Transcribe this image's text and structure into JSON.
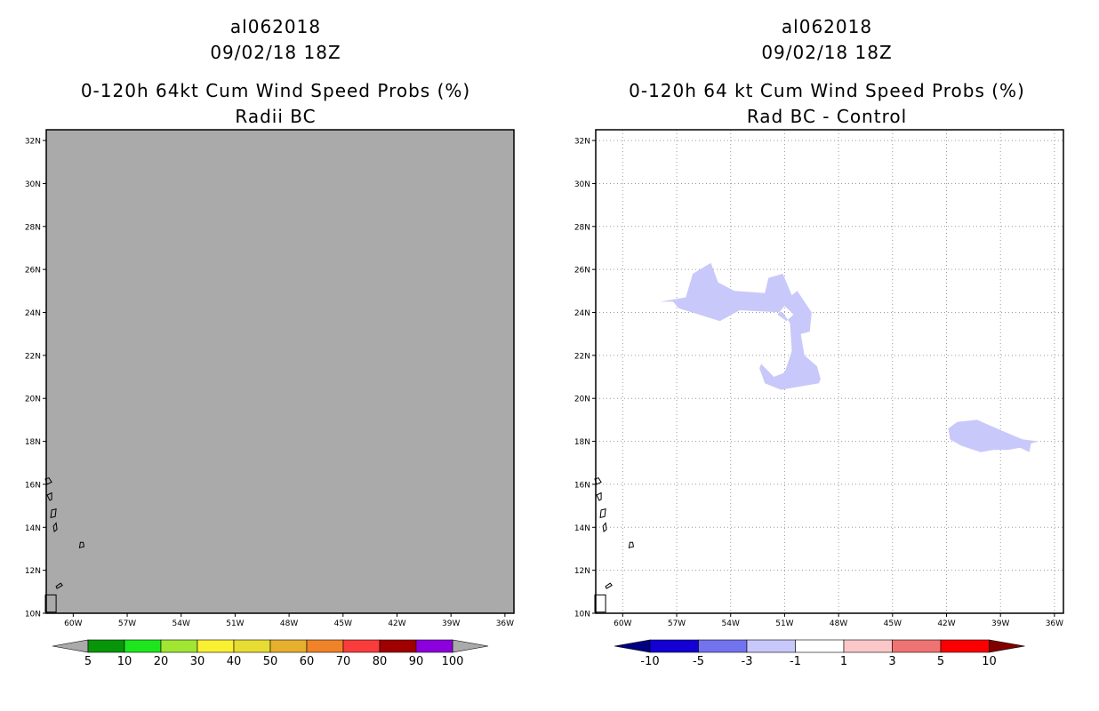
{
  "left_panel": {
    "title_lines": [
      "al062018",
      "09/02/18 18Z",
      "0-120h 64kt Cum Wind Speed Probs (%)",
      "Radii BC"
    ],
    "colorbar": {
      "labels": [
        "5",
        "10",
        "20",
        "30",
        "40",
        "50",
        "60",
        "70",
        "80",
        "90",
        "100"
      ],
      "colors": [
        "#079607",
        "#1ee61e",
        "#a0e632",
        "#faf032",
        "#e6dc32",
        "#e6af2d",
        "#f08228",
        "#fa3c3c",
        "#a00000",
        "#8c00dc"
      ],
      "under_color": "#aaaaaa",
      "over_color": "#aaaaaa"
    },
    "field_color": "#aaaaaa"
  },
  "right_panel": {
    "title_lines": [
      "al062018",
      "09/02/18 18Z",
      "0-120h 64 kt Cum Wind Speed Probs (%)",
      "Rad BC - Control"
    ],
    "colorbar": {
      "labels": [
        "-10",
        "-5",
        "-3",
        "-1",
        "1",
        "3",
        "5",
        "10"
      ],
      "colors": [
        "#1400d2",
        "#7373f0",
        "#c8c8fa",
        "#ffffff",
        "#fac8c8",
        "#f07373",
        "#fa0000"
      ],
      "under_color": "#000080",
      "over_color": "#800000"
    },
    "field_color": "#c8c8fa"
  },
  "chart_data": [
    {
      "type": "heatmap",
      "title": "0-120h 64kt Cum Wind Speed Probs (%) - Radii BC",
      "lon_ticks": [
        "60W",
        "57W",
        "54W",
        "51W",
        "48W",
        "45W",
        "42W",
        "39W",
        "36W"
      ],
      "lon_values": [
        -60,
        -57,
        -54,
        -51,
        -48,
        -45,
        -42,
        -39,
        -36
      ],
      "lat_ticks": [
        "32N",
        "30N",
        "28N",
        "26N",
        "24N",
        "22N",
        "20N",
        "18N",
        "16N",
        "14N",
        "12N",
        "10N"
      ],
      "lat_values": [
        32,
        30,
        28,
        26,
        24,
        22,
        20,
        18,
        16,
        14,
        12,
        10
      ],
      "xlim": [
        -61.5,
        -35.5
      ],
      "ylim": [
        10,
        32.5
      ],
      "gridlines": false,
      "field": "uniform below 5%"
    },
    {
      "type": "heatmap",
      "title": "0-120h 64 kt Cum Wind Speed Probs (%) - Rad BC - Control",
      "lon_ticks": [
        "60W",
        "57W",
        "54W",
        "51W",
        "48W",
        "45W",
        "42W",
        "39W",
        "36W"
      ],
      "lon_values": [
        -60,
        -57,
        -54,
        -51,
        -48,
        -45,
        -42,
        -39,
        -36
      ],
      "lat_ticks": [
        "32N",
        "30N",
        "28N",
        "26N",
        "24N",
        "22N",
        "20N",
        "18N",
        "16N",
        "14N",
        "12N",
        "10N"
      ],
      "lat_values": [
        32,
        30,
        28,
        26,
        24,
        22,
        20,
        18,
        16,
        14,
        12,
        10
      ],
      "xlim": [
        -61.5,
        -35.5
      ],
      "ylim": [
        10,
        32.5
      ],
      "gridlines": true,
      "regions": [
        {
          "name": "difference-area-north",
          "range": "-3 to -1",
          "polygon": [
            [
              -57.9,
              24.5
            ],
            [
              -56.5,
              24.7
            ],
            [
              -56.1,
              25.8
            ],
            [
              -55.1,
              26.3
            ],
            [
              -54.7,
              25.4
            ],
            [
              -53.8,
              25.0
            ],
            [
              -52.1,
              24.9
            ],
            [
              -51.9,
              25.6
            ],
            [
              -51.1,
              25.8
            ],
            [
              -50.6,
              24.8
            ],
            [
              -50.3,
              25.0
            ],
            [
              -49.5,
              24.0
            ],
            [
              -49.6,
              23.1
            ],
            [
              -50.1,
              23.0
            ],
            [
              -49.9,
              22.0
            ],
            [
              -49.2,
              21.5
            ],
            [
              -49.0,
              20.9
            ],
            [
              -49.1,
              20.7
            ],
            [
              -51.2,
              20.4
            ],
            [
              -52.1,
              20.7
            ],
            [
              -52.4,
              21.4
            ],
            [
              -52.3,
              21.6
            ],
            [
              -51.6,
              21.0
            ],
            [
              -51.0,
              21.2
            ],
            [
              -50.6,
              22.2
            ],
            [
              -50.7,
              23.5
            ],
            [
              -51.1,
              24.0
            ],
            [
              -53.5,
              24.1
            ],
            [
              -54.6,
              23.6
            ],
            [
              -56.9,
              24.2
            ],
            [
              -57.2,
              24.5
            ]
          ],
          "hole": [
            [
              -51.4,
              23.9
            ],
            [
              -51.0,
              24.3
            ],
            [
              -50.5,
              23.9
            ],
            [
              -50.9,
              23.6
            ]
          ]
        },
        {
          "name": "difference-area-east",
          "range": "-3 to -1",
          "polygon": [
            [
              -41.9,
              18.6
            ],
            [
              -41.4,
              18.9
            ],
            [
              -40.3,
              19.0
            ],
            [
              -39.2,
              18.6
            ],
            [
              -37.8,
              18.1
            ],
            [
              -36.9,
              18.0
            ],
            [
              -37.3,
              17.9
            ],
            [
              -37.4,
              17.5
            ],
            [
              -37.9,
              17.7
            ],
            [
              -38.6,
              17.6
            ],
            [
              -39.4,
              17.6
            ],
            [
              -40.1,
              17.5
            ],
            [
              -41.2,
              17.8
            ],
            [
              -41.8,
              18.1
            ]
          ]
        }
      ]
    }
  ]
}
